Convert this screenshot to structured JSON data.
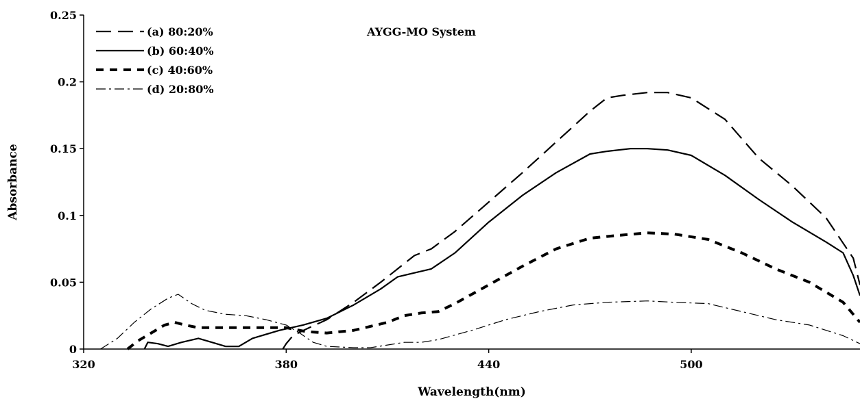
{
  "chart_data": {
    "type": "line",
    "title": "AYGG-MO System",
    "xlabel": "Wavelength(nm)",
    "ylabel": "Absorbance",
    "xlim": [
      320,
      550
    ],
    "ylim": [
      0,
      0.25
    ],
    "x_ticks": [
      320,
      380,
      440,
      500
    ],
    "x_tick_labels": [
      "320",
      "380",
      "440",
      "500"
    ],
    "y_ticks": [
      0,
      0.05,
      0.1,
      0.15,
      0.2,
      0.25
    ],
    "y_tick_labels": [
      "0",
      "0.05",
      "0.1",
      "0.15",
      "0.2",
      "0.25"
    ],
    "grid": false,
    "legend_position": "top-left",
    "series": [
      {
        "name": "(a) 80:20%",
        "line_style": "long-dash",
        "color": "#000000",
        "points": [
          [
            379,
            0
          ],
          [
            380,
            0.004
          ],
          [
            382,
            0.01
          ],
          [
            386,
            0.015
          ],
          [
            392,
            0.022
          ],
          [
            400,
            0.035
          ],
          [
            408,
            0.05
          ],
          [
            414,
            0.062
          ],
          [
            418,
            0.07
          ],
          [
            423,
            0.075
          ],
          [
            430,
            0.088
          ],
          [
            440,
            0.11
          ],
          [
            450,
            0.132
          ],
          [
            460,
            0.155
          ],
          [
            470,
            0.178
          ],
          [
            475,
            0.188
          ],
          [
            480,
            0.19
          ],
          [
            487,
            0.192
          ],
          [
            493,
            0.192
          ],
          [
            500,
            0.188
          ],
          [
            510,
            0.172
          ],
          [
            520,
            0.143
          ],
          [
            530,
            0.122
          ],
          [
            540,
            0.098
          ],
          [
            548,
            0.068
          ],
          [
            550,
            0.048
          ]
        ]
      },
      {
        "name": "(b) 60:40%",
        "line_style": "solid",
        "color": "#000000",
        "points": [
          [
            338,
            0
          ],
          [
            339,
            0.005
          ],
          [
            342,
            0.004
          ],
          [
            345,
            0.002
          ],
          [
            349,
            0.005
          ],
          [
            354,
            0.008
          ],
          [
            358,
            0.005
          ],
          [
            362,
            0.002
          ],
          [
            366,
            0.002
          ],
          [
            370,
            0.008
          ],
          [
            378,
            0.014
          ],
          [
            385,
            0.018
          ],
          [
            392,
            0.023
          ],
          [
            400,
            0.033
          ],
          [
            408,
            0.045
          ],
          [
            413,
            0.054
          ],
          [
            418,
            0.057
          ],
          [
            423,
            0.06
          ],
          [
            430,
            0.072
          ],
          [
            440,
            0.095
          ],
          [
            450,
            0.115
          ],
          [
            460,
            0.132
          ],
          [
            470,
            0.146
          ],
          [
            475,
            0.148
          ],
          [
            482,
            0.15
          ],
          [
            487,
            0.15
          ],
          [
            493,
            0.149
          ],
          [
            500,
            0.145
          ],
          [
            510,
            0.13
          ],
          [
            520,
            0.112
          ],
          [
            530,
            0.095
          ],
          [
            540,
            0.08
          ],
          [
            545,
            0.072
          ],
          [
            548,
            0.055
          ],
          [
            550,
            0.04
          ]
        ]
      },
      {
        "name": "(c) 40:60%",
        "line_style": "short-dash",
        "color": "#000000",
        "points": [
          [
            333,
            0
          ],
          [
            336,
            0.006
          ],
          [
            340,
            0.012
          ],
          [
            344,
            0.018
          ],
          [
            347,
            0.02
          ],
          [
            350,
            0.018
          ],
          [
            354,
            0.016
          ],
          [
            362,
            0.016
          ],
          [
            372,
            0.016
          ],
          [
            380,
            0.016
          ],
          [
            386,
            0.013
          ],
          [
            392,
            0.012
          ],
          [
            400,
            0.014
          ],
          [
            410,
            0.02
          ],
          [
            415,
            0.025
          ],
          [
            420,
            0.027
          ],
          [
            425,
            0.028
          ],
          [
            430,
            0.034
          ],
          [
            440,
            0.048
          ],
          [
            450,
            0.062
          ],
          [
            460,
            0.075
          ],
          [
            470,
            0.083
          ],
          [
            478,
            0.085
          ],
          [
            487,
            0.087
          ],
          [
            495,
            0.086
          ],
          [
            505,
            0.082
          ],
          [
            515,
            0.072
          ],
          [
            525,
            0.06
          ],
          [
            535,
            0.05
          ],
          [
            545,
            0.035
          ],
          [
            550,
            0.02
          ]
        ]
      },
      {
        "name": "(d) 20:80%",
        "line_style": "dash-dot",
        "color": "#000000",
        "points": [
          [
            325,
            0
          ],
          [
            330,
            0.008
          ],
          [
            335,
            0.02
          ],
          [
            340,
            0.03
          ],
          [
            345,
            0.038
          ],
          [
            348,
            0.041
          ],
          [
            352,
            0.034
          ],
          [
            356,
            0.029
          ],
          [
            362,
            0.026
          ],
          [
            368,
            0.025
          ],
          [
            374,
            0.022
          ],
          [
            380,
            0.018
          ],
          [
            384,
            0.012
          ],
          [
            388,
            0.005
          ],
          [
            392,
            0.002
          ],
          [
            400,
            0.001
          ],
          [
            405,
            0.001
          ],
          [
            410,
            0.003
          ],
          [
            415,
            0.005
          ],
          [
            420,
            0.005
          ],
          [
            425,
            0.007
          ],
          [
            435,
            0.014
          ],
          [
            445,
            0.022
          ],
          [
            455,
            0.028
          ],
          [
            465,
            0.033
          ],
          [
            475,
            0.035
          ],
          [
            487,
            0.036
          ],
          [
            495,
            0.035
          ],
          [
            505,
            0.034
          ],
          [
            515,
            0.028
          ],
          [
            525,
            0.022
          ],
          [
            535,
            0.018
          ],
          [
            545,
            0.01
          ],
          [
            550,
            0.004
          ]
        ]
      }
    ]
  }
}
